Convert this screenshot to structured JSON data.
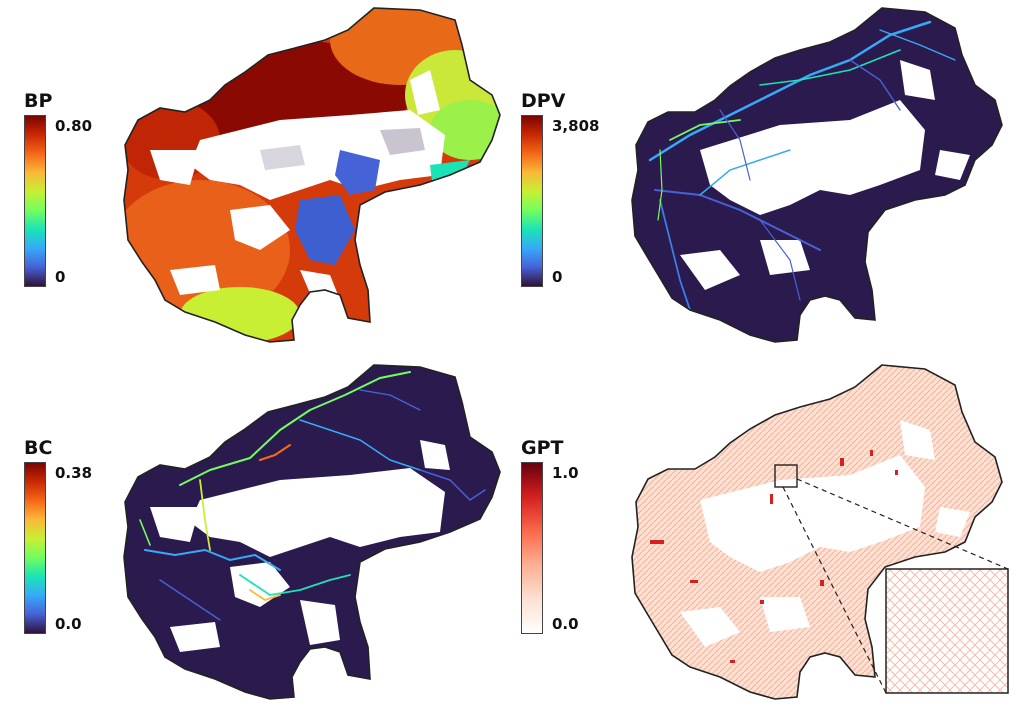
{
  "panels": [
    {
      "id": "bp",
      "title": "BP",
      "max_label": "0.80",
      "min_label": "0",
      "colormap": "turbo"
    },
    {
      "id": "dpv",
      "title": "DPV",
      "max_label": "3,808",
      "min_label": "0",
      "colormap": "turbo"
    },
    {
      "id": "bc",
      "title": "BC",
      "max_label": "0.38",
      "min_label": "0.0",
      "colormap": "turbo"
    },
    {
      "id": "gpt",
      "title": "GPT",
      "max_label": "1.0",
      "min_label": "0.0",
      "colormap": "reds"
    }
  ],
  "colors": {
    "turbo": [
      "#30123b",
      "#4662d7",
      "#36aaf9",
      "#1ae4b6",
      "#72fe5e",
      "#c8ef34",
      "#fbb938",
      "#f56918",
      "#c92903",
      "#7a0403"
    ],
    "reds": [
      "#ffffff",
      "#fde0d2",
      "#fcaf93",
      "#f9694c",
      "#d42020",
      "#67000d"
    ],
    "outline": "#222222",
    "dark_fill": "#2b1a4e"
  }
}
